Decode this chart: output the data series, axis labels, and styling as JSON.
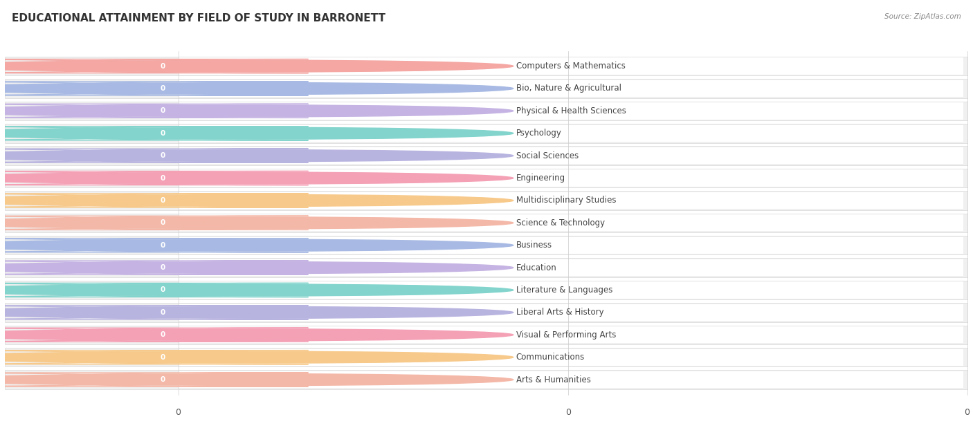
{
  "title": "EDUCATIONAL ATTAINMENT BY FIELD OF STUDY IN BARRONETT",
  "source": "Source: ZipAtlas.com",
  "categories": [
    "Computers & Mathematics",
    "Bio, Nature & Agricultural",
    "Physical & Health Sciences",
    "Psychology",
    "Social Sciences",
    "Engineering",
    "Multidisciplinary Studies",
    "Science & Technology",
    "Business",
    "Education",
    "Literature & Languages",
    "Liberal Arts & History",
    "Visual & Performing Arts",
    "Communications",
    "Arts & Humanities"
  ],
  "values": [
    0,
    0,
    0,
    0,
    0,
    0,
    0,
    0,
    0,
    0,
    0,
    0,
    0,
    0,
    0
  ],
  "bar_colors": [
    "#F4A7A3",
    "#A8BAE3",
    "#C5B4E3",
    "#82D4CC",
    "#B8B4E0",
    "#F4A0B5",
    "#F7C98A",
    "#F4B8A8",
    "#A8BAE3",
    "#C5B4E3",
    "#82D4CC",
    "#B8B4E0",
    "#F4A0B5",
    "#F7C98A",
    "#F4B8A8"
  ],
  "circle_colors": [
    "#F4A7A3",
    "#A8BAE3",
    "#C5B4E3",
    "#82D4CC",
    "#B8B4E0",
    "#F4A0B5",
    "#F7C98A",
    "#F4B8A8",
    "#A8BAE3",
    "#C5B4E3",
    "#82D4CC",
    "#B8B4E0",
    "#F4A0B5",
    "#F7C98A",
    "#F4B8A8"
  ],
  "background_color": "#ffffff",
  "row_bg_color": "#f0f0f0",
  "row_border_color": "#d8d8d8",
  "title_fontsize": 11,
  "label_fontsize": 8.5,
  "value_fontsize": 7.5
}
